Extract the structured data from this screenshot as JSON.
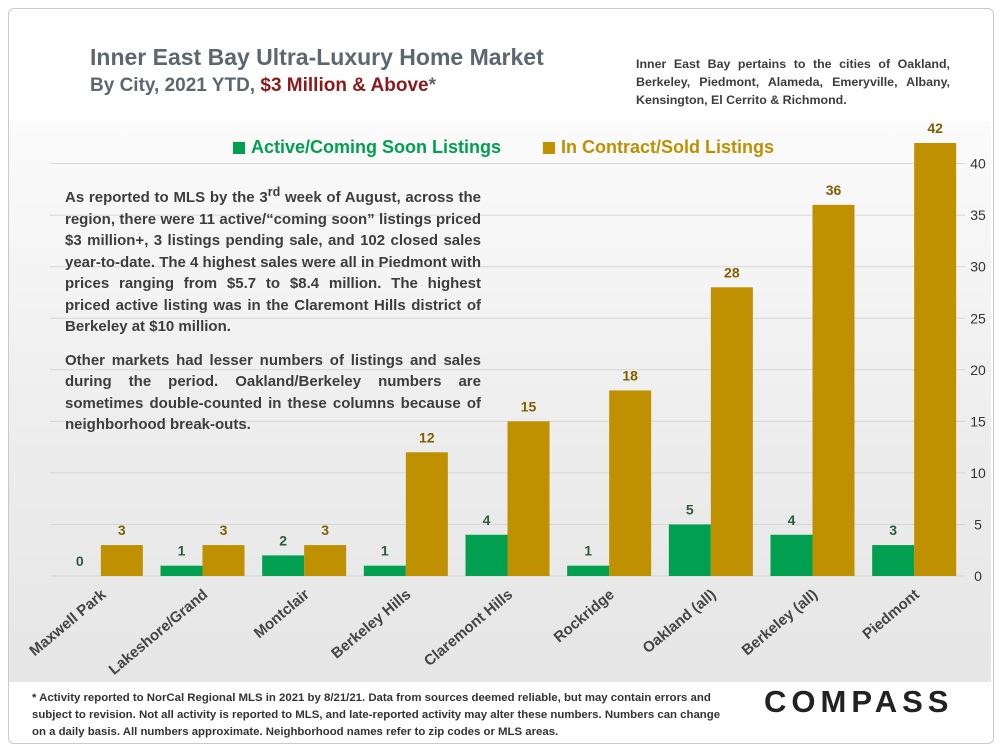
{
  "header": {
    "title": "Inner East Bay Ultra-Luxury Home Market",
    "subtitle_prefix": "By City, 2021 YTD, ",
    "subtitle_highlight": "$3 Million & Above",
    "subtitle_suffix": "*",
    "note": "Inner East Bay pertains to the cities of Oakland, Berkeley, Piedmont, Alameda, Emeryville, Albany, Kensington, El Cerrito & Richmond."
  },
  "colors": {
    "active": "#00a050",
    "sold": "#bf9000",
    "accent_red": "#8b1a1a"
  },
  "body": {
    "p1_a": "As reported to MLS by the 3",
    "p1_sup": "rd",
    "p1_b": " week of August, across the region, there were 11 active/“coming soon” listings priced $3 million+, 3 listings pending sale, and 102 closed sales year-to-date.  The 4 highest sales were all in Piedmont with prices ranging from $5.7 to $8.4 million. The highest priced active listing was in the Claremont Hills district of Berkeley at $10 million.",
    "p2": "Other markets had lesser numbers of listings and sales during the period. Oakland/Berkeley numbers are sometimes double-counted in these columns because of neighborhood break-outs."
  },
  "footnote": "* Activity reported to NorCal Regional MLS in 2021 by 8/21/21. Data from sources deemed reliable, but may contain errors and subject to revision. Not all activity is reported to MLS, and late-reported activity may alter these numbers. Numbers can change on a daily basis. All numbers approximate. Neighborhood names refer to zip codes or MLS areas.",
  "logo": "COMPASS",
  "chart_data": {
    "type": "bar",
    "title": "Inner East Bay Ultra-Luxury Home Market",
    "categories": [
      "Maxwell Park",
      "Lakeshore/Grand",
      "Montclair",
      "Berkeley Hills",
      "Claremont Hills",
      "Rockridge",
      "Oakland (all)",
      "Berkeley (all)",
      "Piedmont"
    ],
    "series": [
      {
        "name": "Active/Coming Soon Listings",
        "values": [
          0,
          1,
          2,
          1,
          4,
          1,
          5,
          4,
          3
        ]
      },
      {
        "name": "In Contract/Sold Listings",
        "values": [
          3,
          3,
          3,
          12,
          15,
          18,
          28,
          36,
          42
        ]
      }
    ],
    "ylim": [
      0,
      42
    ],
    "yticks": [
      0,
      5,
      10,
      15,
      20,
      25,
      30,
      35,
      40
    ],
    "xlabel": "",
    "ylabel": "",
    "grid": true,
    "legend": "top"
  }
}
